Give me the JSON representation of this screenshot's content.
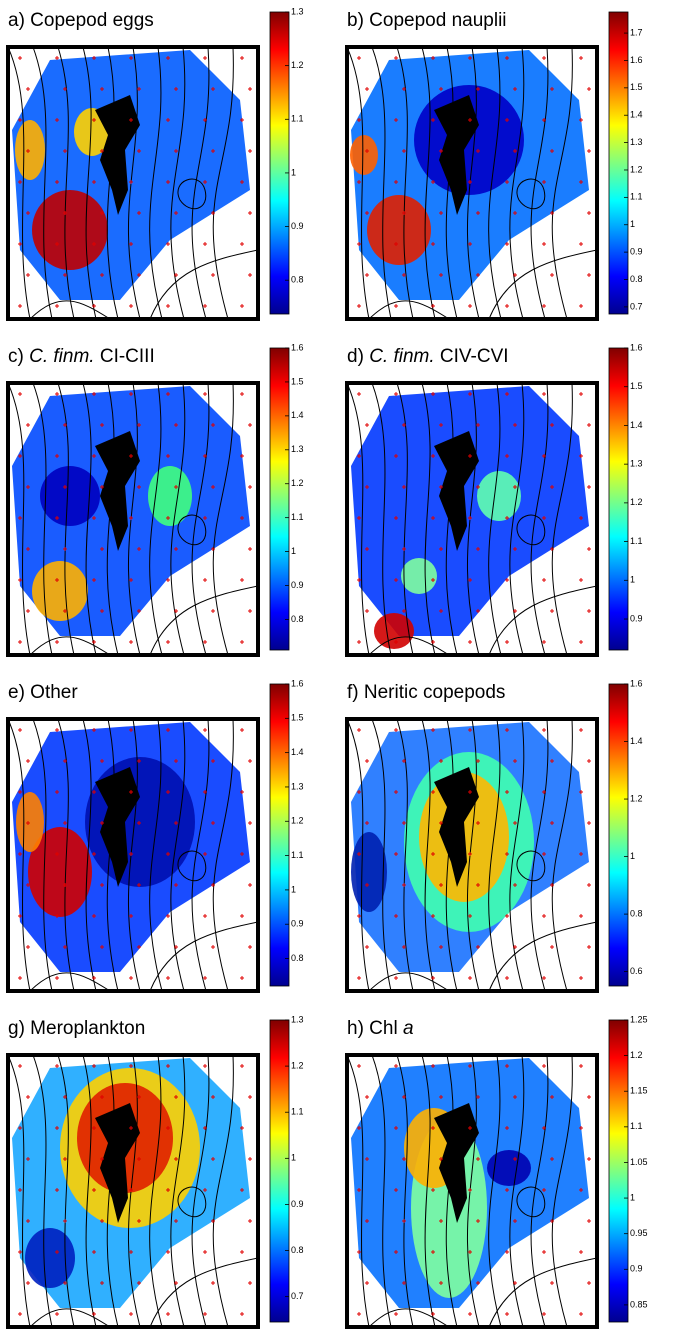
{
  "panels": [
    {
      "title": [
        {
          "text": "a) Copepod eggs"
        }
      ],
      "colorbar": {
        "lim": [
          0.737,
          1.3
        ],
        "ticks": [
          0.8,
          0.9,
          1,
          1.1,
          1.2,
          1.3
        ]
      }
    },
    {
      "title": [
        {
          "text": "b) Copepod nauplii"
        }
      ],
      "colorbar": {
        "lim": [
          0.674,
          1.777
        ],
        "ticks": [
          0.7,
          0.8,
          0.9,
          1,
          1.1,
          1.2,
          1.3,
          1.4,
          1.5,
          1.6,
          1.7
        ]
      }
    },
    {
      "title": [
        {
          "text": "c) "
        },
        {
          "text": "C. finm.",
          "italic": true
        },
        {
          "text": " CI-CIII"
        }
      ],
      "colorbar": {
        "lim": [
          0.71,
          1.6
        ],
        "ticks": [
          0.8,
          0.9,
          1,
          1.1,
          1.2,
          1.3,
          1.4,
          1.5,
          1.6
        ]
      }
    },
    {
      "title": [
        {
          "text": "d) "
        },
        {
          "text": "C. finm.",
          "italic": true
        },
        {
          "text": " CIV-CVI"
        }
      ],
      "colorbar": {
        "lim": [
          0.82,
          1.6
        ],
        "ticks": [
          0.9,
          1,
          1.1,
          1.2,
          1.3,
          1.4,
          1.5,
          1.6
        ]
      }
    },
    {
      "title": [
        {
          "text": "e) Other"
        }
      ],
      "colorbar": {
        "lim": [
          0.72,
          1.6
        ],
        "ticks": [
          0.8,
          0.9,
          1,
          1.1,
          1.2,
          1.3,
          1.4,
          1.5,
          1.6
        ]
      }
    },
    {
      "title": [
        {
          "text": "f) Neritic copepods"
        }
      ],
      "colorbar": {
        "lim": [
          0.55,
          1.6
        ],
        "ticks": [
          0.6,
          0.8,
          1,
          1.2,
          1.4,
          1.6
        ]
      }
    },
    {
      "title": [
        {
          "text": "g) Meroplankton"
        }
      ],
      "colorbar": {
        "lim": [
          0.645,
          1.3
        ],
        "ticks": [
          0.7,
          0.8,
          0.9,
          1,
          1.1,
          1.2,
          1.3
        ]
      }
    },
    {
      "title": [
        {
          "text": "h) Chl "
        },
        {
          "text": "a",
          "italic": true
        }
      ],
      "colorbar": {
        "lim": [
          0.826,
          1.25
        ],
        "ticks": [
          0.85,
          0.9,
          0.95,
          1,
          1.05,
          1.1,
          1.15,
          1.2,
          1.25
        ]
      }
    }
  ]
}
